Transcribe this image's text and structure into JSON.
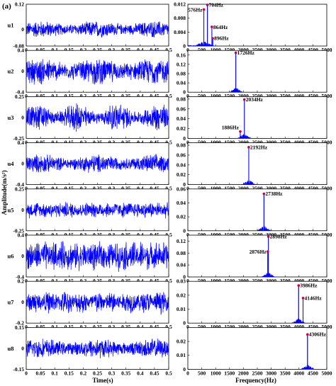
{
  "panel_label": "(a)",
  "chart_data": {
    "type": "line",
    "layout": "8x2 subplot grid: time-domain signals (left) and frequency spectra (right)",
    "time_axis": {
      "xlabel": "Time(s)",
      "xlim": [
        0,
        0.5
      ],
      "xticks": [
        "0",
        "0.05",
        "0.1",
        "0.15",
        "0.2",
        "0.25",
        "0.3",
        "0.35",
        "0.4",
        "0.45",
        "0.5"
      ]
    },
    "freq_axis": {
      "xlabel": "Frequency(Hz)",
      "xlim": [
        0,
        5000
      ],
      "xticks": [
        "0",
        "500",
        "1000",
        "1500",
        "2000",
        "2500",
        "3000",
        "3500",
        "4000",
        "4500",
        "5000"
      ]
    },
    "ylabel": "Amplitude(m/s²)",
    "line_color": "#0000ff",
    "marker_color": "#cc0044",
    "rows": [
      {
        "name": "u1",
        "time": {
          "ylim": [
            -0.08,
            0.12
          ],
          "yticks": [
            "0.12",
            "0",
            "-0.08"
          ],
          "amplitude": 0.045
        },
        "freq": {
          "ylim": [
            0,
            0.012
          ],
          "yticks": [
            "0.012",
            "0.008",
            "0.004",
            "0"
          ],
          "peaks": [
            {
              "hz": 576,
              "amp": 0.0105
            },
            {
              "hz": 704,
              "amp": 0.0118
            },
            {
              "hz": 864,
              "amp": 0.0055
            },
            {
              "hz": 896,
              "amp": 0.0022
            }
          ],
          "annotations": [
            "576Hz",
            "704Hz",
            "864Hz",
            "896Hz"
          ]
        }
      },
      {
        "name": "u2",
        "time": {
          "ylim": [
            -0.4,
            0.4
          ],
          "yticks": [
            "0.4",
            "0",
            "-0.4"
          ],
          "amplitude": 0.28
        },
        "freq": {
          "ylim": [
            0,
            0.18
          ],
          "yticks": [
            "0.16",
            "0.12",
            "0.08",
            "0.04",
            "0"
          ],
          "peaks": [
            {
              "hz": 1726,
              "amp": 0.17
            }
          ],
          "annotations": [
            "1726Hz"
          ]
        }
      },
      {
        "name": "u3",
        "time": {
          "ylim": [
            -0.25,
            0.25
          ],
          "yticks": [
            "0.25",
            "0",
            "-0.25"
          ],
          "amplitude": 0.19
        },
        "freq": {
          "ylim": [
            0,
            0.085
          ],
          "yticks": [
            "0.08",
            "0.06",
            "0.04",
            "0.02",
            "0"
          ],
          "peaks": [
            {
              "hz": 2034,
              "amp": 0.079
            },
            {
              "hz": 1886,
              "amp": 0.014
            }
          ],
          "annotations": [
            "2034Hz",
            "1886Hz"
          ]
        }
      },
      {
        "name": "u4",
        "time": {
          "ylim": [
            -0.4,
            0.4
          ],
          "yticks": [
            "0.4",
            "0",
            "-0.4"
          ],
          "amplitude": 0.2
        },
        "freq": {
          "ylim": [
            0,
            0.085
          ],
          "yticks": [
            "0.08",
            "0.06",
            "0.04",
            "0.02",
            "0"
          ],
          "peaks": [
            {
              "hz": 2192,
              "amp": 0.076
            }
          ],
          "annotations": [
            "2192Hz"
          ]
        }
      },
      {
        "name": "u5",
        "time": {
          "ylim": [
            -0.25,
            0.25
          ],
          "yticks": [
            "0.25",
            "0",
            "-0.25"
          ],
          "amplitude": 0.11
        },
        "freq": {
          "ylim": [
            0,
            0.06
          ],
          "yticks": [
            "0.06",
            "0.04",
            "0.02",
            "0"
          ],
          "peaks": [
            {
              "hz": 2738,
              "amp": 0.053
            }
          ],
          "annotations": [
            "2738Hz"
          ]
        }
      },
      {
        "name": "u6",
        "time": {
          "ylim": [
            -0.4,
            0.4
          ],
          "yticks": [
            "0.4",
            "0",
            "-0.4"
          ],
          "amplitude": 0.33
        },
        "freq": {
          "ylim": [
            0,
            0.14
          ],
          "yticks": [
            "0.12",
            "0.08",
            "0.04",
            "0"
          ],
          "peaks": [
            {
              "hz": 2898,
              "amp": 0.135
            },
            {
              "hz": 2876,
              "amp": 0.085
            }
          ],
          "annotations": [
            "2898Hz",
            "2876Hz"
          ]
        }
      },
      {
        "name": "u7",
        "time": {
          "ylim": [
            -0.2,
            0.2
          ],
          "yticks": [
            "0.2",
            "0",
            "-0.2"
          ],
          "amplitude": 0.12
        },
        "freq": {
          "ylim": [
            0,
            0.03
          ],
          "yticks": [
            "0.03",
            "0.02",
            "0.01",
            "0"
          ],
          "peaks": [
            {
              "hz": 3986,
              "amp": 0.027
            },
            {
              "hz": 4146,
              "amp": 0.018
            }
          ],
          "annotations": [
            "3986Hz",
            "4146Hz"
          ]
        }
      },
      {
        "name": "u8",
        "time": {
          "ylim": [
            -0.15,
            0.15
          ],
          "yticks": [
            "0.15",
            "0",
            "-0.15"
          ],
          "amplitude": 0.08
        },
        "freq": {
          "ylim": [
            0,
            0.03
          ],
          "yticks": [
            "0.02",
            "0.01",
            "0"
          ],
          "peaks": [
            {
              "hz": 4306,
              "amp": 0.025
            }
          ],
          "annotations": [
            "4306Hz"
          ]
        }
      }
    ]
  }
}
